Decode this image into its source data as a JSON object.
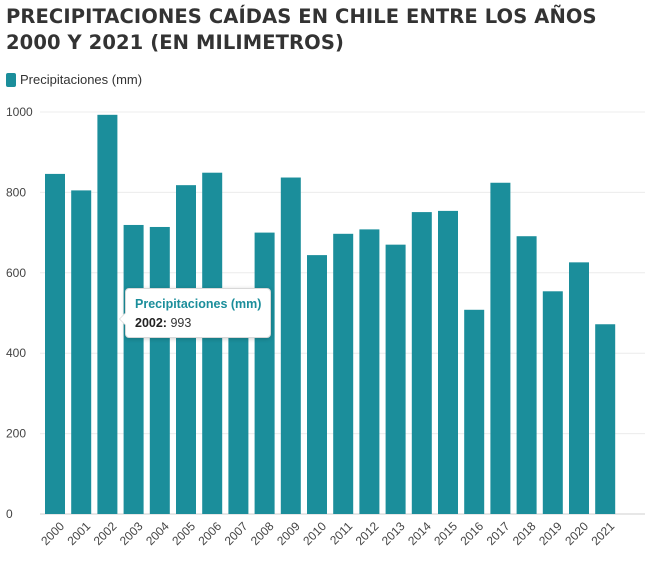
{
  "chart_data": {
    "type": "bar",
    "title": "PRECIPITACIONES CAÍDAS EN CHILE ENTRE LOS AÑOS 2000 Y 2021 (EN MILIMETROS)",
    "xlabel": "",
    "ylabel": "",
    "legend": "top-left",
    "grid": true,
    "ylim": [
      0,
      1000
    ],
    "yticks": [
      0,
      200,
      400,
      600,
      800,
      1000
    ],
    "categories": [
      "2000",
      "2001",
      "2002",
      "2003",
      "2004",
      "2005",
      "2006",
      "2007",
      "2008",
      "2009",
      "2010",
      "2011",
      "2012",
      "2013",
      "2014",
      "2015",
      "2016",
      "2017",
      "2018",
      "2019",
      "2020",
      "2021"
    ],
    "series": [
      {
        "name": "Precipitaciones (mm)",
        "color": "#1b8e9b",
        "values": [
          846,
          805,
          993,
          719,
          714,
          818,
          849,
          440,
          700,
          837,
          644,
          697,
          708,
          670,
          751,
          754,
          508,
          824,
          691,
          554,
          626,
          472
        ]
      }
    ]
  },
  "tooltip": {
    "series": "Precipitaciones (mm)",
    "year": "2002:",
    "value": "993"
  }
}
